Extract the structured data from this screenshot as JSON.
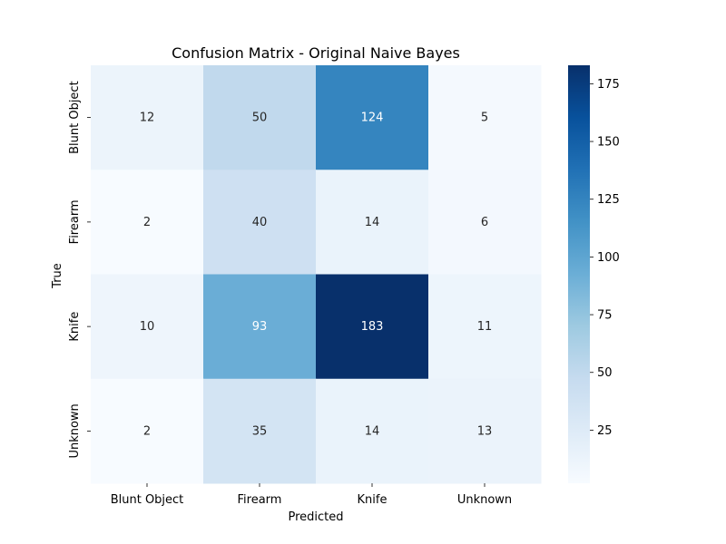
{
  "chart_data": {
    "type": "heatmap",
    "title": "Confusion Matrix - Original Naive Bayes",
    "xlabel": "Predicted",
    "ylabel": "True",
    "x_categories": [
      "Blunt Object",
      "Firearm",
      "Knife",
      "Unknown"
    ],
    "y_categories": [
      "Blunt Object",
      "Firearm",
      "Knife",
      "Unknown"
    ],
    "values": [
      [
        12,
        50,
        124,
        5
      ],
      [
        2,
        40,
        14,
        6
      ],
      [
        10,
        93,
        183,
        11
      ],
      [
        2,
        35,
        14,
        13
      ]
    ],
    "colormap": "Blues",
    "color_range": [
      2,
      183
    ],
    "colorbar_ticks": [
      25,
      50,
      75,
      100,
      125,
      150,
      175
    ],
    "colors": {
      "low": "#f7fbff",
      "high": "#08306b",
      "text_dark": "#262626",
      "text_light": "#ffffff"
    }
  }
}
